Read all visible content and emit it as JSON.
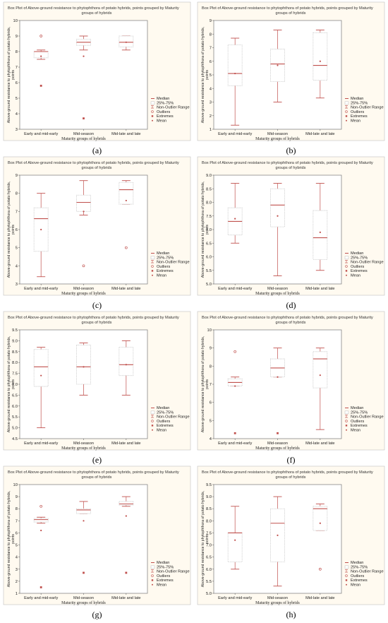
{
  "common": {
    "title": "Box Plot of Above-ground resistance to phytophthora of potato hybrids, points grouped by Maturity groups of hybrids",
    "title_line1": "Box Plot of Above-ground resistance to phytophthora of potato hybrids, points grouped by  Maturity",
    "title_line2": "groups of hybrids",
    "ylabel_line1": "Above-ground resistance to phytophthora of potato hybrids,",
    "ylabel_line2": "points",
    "xlabel": "Maturity groups of hybrids",
    "categories": [
      "Early and mid-early",
      "Mid-season",
      "Mid-late and late"
    ],
    "legend": [
      "Median",
      "25%-75%",
      "Non-Outlier Range",
      "Outliers",
      "Extremes",
      "Mean"
    ]
  },
  "colors": {
    "box": "#c0504d",
    "whisker": "#c8c8c8",
    "panel_bg": "#fffaf0",
    "border": "#888888"
  },
  "chart_data": [
    {
      "type": "boxplot",
      "panel_label": "(a)",
      "ylim": [
        3,
        10
      ],
      "yticks": [
        3,
        4,
        5,
        6,
        7,
        8,
        9,
        10
      ],
      "decimals": 0,
      "boxes": [
        {
          "category": "Early and mid-early",
          "min": 7.5,
          "q1": 7.6,
          "median": 8.0,
          "q3": 8.0,
          "max": 8.1,
          "mean": 7.7,
          "outliers": [
            9.0
          ],
          "extremes": [
            5.8
          ]
        },
        {
          "category": "Mid-season",
          "min": 8.1,
          "q1": 8.4,
          "median": 8.6,
          "q3": 8.8,
          "max": 9.0,
          "mean": 7.7,
          "outliers": [],
          "extremes": [
            3.7
          ]
        },
        {
          "category": "Mid-late and late",
          "min": 8.1,
          "q1": 8.3,
          "median": 8.6,
          "q3": 9.0,
          "max": 9.0,
          "mean": 8.6,
          "outliers": [],
          "extremes": []
        }
      ]
    },
    {
      "type": "boxplot",
      "panel_label": "(b)",
      "ylim": [
        1,
        9
      ],
      "yticks": [
        1,
        2,
        3,
        4,
        5,
        6,
        7,
        8,
        9
      ],
      "decimals": 0,
      "boxes": [
        {
          "category": "Early and mid-early",
          "min": 1.3,
          "q1": 4.2,
          "median": 5.1,
          "q3": 7.2,
          "max": 7.7,
          "mean": 5.1,
          "outliers": [],
          "extremes": []
        },
        {
          "category": "Mid-season",
          "min": 3.0,
          "q1": 4.5,
          "median": 5.8,
          "q3": 6.9,
          "max": 8.3,
          "mean": 5.7,
          "outliers": [],
          "extremes": []
        },
        {
          "category": "Mid-late and late",
          "min": 3.3,
          "q1": 4.6,
          "median": 5.7,
          "q3": 8.1,
          "max": 8.3,
          "mean": 6.0,
          "outliers": [],
          "extremes": []
        }
      ]
    },
    {
      "type": "boxplot",
      "panel_label": "(c)",
      "ylim": [
        3,
        9
      ],
      "yticks": [
        3,
        4,
        5,
        6,
        7,
        8,
        9
      ],
      "decimals": 0,
      "boxes": [
        {
          "category": "Early and mid-early",
          "min": 3.4,
          "q1": 4.8,
          "median": 6.6,
          "q3": 7.2,
          "max": 8.0,
          "mean": 6.0,
          "outliers": [],
          "extremes": []
        },
        {
          "category": "Mid-season",
          "min": 6.8,
          "q1": 7.0,
          "median": 7.5,
          "q3": 7.9,
          "max": 8.7,
          "mean": 7.0,
          "outliers": [
            4.0
          ],
          "extremes": []
        },
        {
          "category": "Mid-late and late",
          "min": 7.4,
          "q1": 7.4,
          "median": 8.2,
          "q3": 8.6,
          "max": 8.7,
          "mean": 7.6,
          "outliers": [
            5.0
          ],
          "extremes": []
        }
      ]
    },
    {
      "type": "boxplot",
      "panel_label": "(d)",
      "ylim": [
        5.0,
        9.0
      ],
      "yticks": [
        5.0,
        5.5,
        6.0,
        6.5,
        7.0,
        7.5,
        8.0,
        8.5,
        9.0
      ],
      "decimals": 1,
      "boxes": [
        {
          "category": "Early and mid-early",
          "min": 6.5,
          "q1": 6.8,
          "median": 7.3,
          "q3": 7.8,
          "max": 8.7,
          "mean": 7.4,
          "outliers": [],
          "extremes": []
        },
        {
          "category": "Mid-season",
          "min": 5.3,
          "q1": 7.1,
          "median": 7.9,
          "q3": 8.5,
          "max": 8.7,
          "mean": 7.5,
          "outliers": [],
          "extremes": []
        },
        {
          "category": "Mid-late and late",
          "min": 5.5,
          "q1": 5.9,
          "median": 6.7,
          "q3": 7.7,
          "max": 8.7,
          "mean": 6.9,
          "outliers": [],
          "extremes": []
        }
      ]
    },
    {
      "type": "boxplot",
      "panel_label": "(e)",
      "ylim": [
        4.5,
        9.5
      ],
      "yticks": [
        4.5,
        5.0,
        5.5,
        6.0,
        6.5,
        7.0,
        7.5,
        8.0,
        8.5,
        9.0,
        9.5
      ],
      "decimals": 1,
      "boxes": [
        {
          "category": "Early and mid-early",
          "min": 5.0,
          "q1": 6.9,
          "median": 7.8,
          "q3": 8.6,
          "max": 8.7,
          "mean": 7.4,
          "outliers": [],
          "extremes": []
        },
        {
          "category": "Mid-season",
          "min": 6.5,
          "q1": 7.0,
          "median": 7.8,
          "q3": 8.8,
          "max": 8.9,
          "mean": 7.8,
          "outliers": [],
          "extremes": []
        },
        {
          "category": "Mid-late and late",
          "min": 6.5,
          "q1": 7.4,
          "median": 7.9,
          "q3": 8.7,
          "max": 9.0,
          "mean": 7.9,
          "outliers": [],
          "extremes": []
        }
      ]
    },
    {
      "type": "boxplot",
      "panel_label": "(f)",
      "ylim": [
        4,
        10
      ],
      "yticks": [
        4,
        5,
        6,
        7,
        8,
        9,
        10
      ],
      "decimals": 0,
      "boxes": [
        {
          "category": "Early and mid-early",
          "min": 6.9,
          "q1": 6.9,
          "median": 7.1,
          "q3": 7.3,
          "max": 7.4,
          "mean": 6.9,
          "outliers": [
            8.8
          ],
          "extremes": [
            4.3
          ]
        },
        {
          "category": "Mid-season",
          "min": 7.4,
          "q1": 7.4,
          "median": 7.9,
          "q3": 8.4,
          "max": 9.0,
          "mean": 7.4,
          "outliers": [],
          "extremes": [
            4.3
          ]
        },
        {
          "category": "Mid-late and late",
          "min": 4.5,
          "q1": 6.8,
          "median": 8.4,
          "q3": 8.8,
          "max": 9.0,
          "mean": 7.5,
          "outliers": [],
          "extremes": []
        }
      ]
    },
    {
      "type": "boxplot",
      "panel_label": "(g)",
      "ylim": [
        1,
        10
      ],
      "yticks": [
        1,
        2,
        3,
        4,
        5,
        6,
        7,
        8,
        9,
        10
      ],
      "decimals": 0,
      "boxes": [
        {
          "category": "Early and mid-early",
          "min": 6.8,
          "q1": 6.9,
          "median": 7.1,
          "q3": 7.2,
          "max": 7.3,
          "mean": 6.2,
          "outliers": [
            8.2
          ],
          "extremes": [
            1.5
          ]
        },
        {
          "category": "Mid-season",
          "min": 7.6,
          "q1": 7.6,
          "median": 7.9,
          "q3": 8.0,
          "max": 8.6,
          "mean": 7.0,
          "outliers": [],
          "extremes": [
            2.7
          ]
        },
        {
          "category": "Mid-late and late",
          "min": 8.2,
          "q1": 8.3,
          "median": 8.4,
          "q3": 8.6,
          "max": 9.0,
          "mean": 7.4,
          "outliers": [],
          "extremes": [
            2.7
          ]
        }
      ]
    },
    {
      "type": "boxplot",
      "panel_label": "(h)",
      "ylim": [
        5.0,
        9.5
      ],
      "yticks": [
        5.0,
        5.5,
        6.0,
        6.5,
        7.0,
        7.5,
        8.0,
        8.5,
        9.0,
        9.5
      ],
      "decimals": 1,
      "boxes": [
        {
          "category": "Early and mid-early",
          "min": 6.0,
          "q1": 6.3,
          "median": 7.5,
          "q3": 7.5,
          "max": 8.6,
          "mean": 7.2,
          "outliers": [],
          "extremes": []
        },
        {
          "category": "Mid-season",
          "min": 5.3,
          "q1": 6.3,
          "median": 7.9,
          "q3": 8.5,
          "max": 9.0,
          "mean": 7.4,
          "outliers": [],
          "extremes": []
        },
        {
          "category": "Mid-late and late",
          "min": 7.6,
          "q1": 7.6,
          "median": 8.5,
          "q3": 8.6,
          "max": 8.7,
          "mean": 7.9,
          "outliers": [
            6.0
          ],
          "extremes": []
        }
      ]
    }
  ]
}
